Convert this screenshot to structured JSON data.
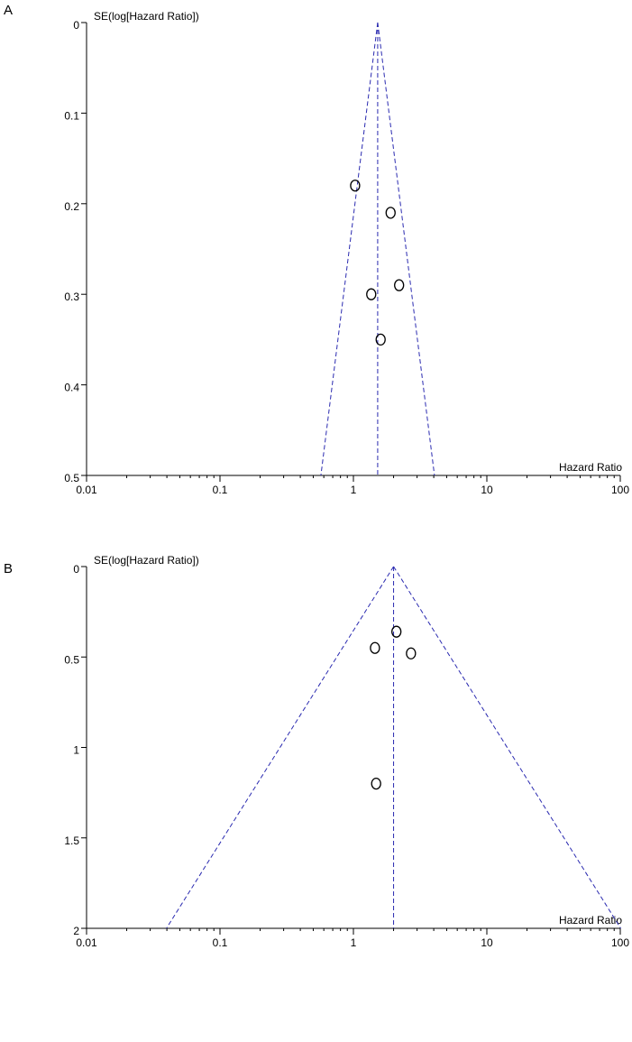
{
  "chart_data": [
    {
      "type": "scatter",
      "panel_label": "A",
      "title": "",
      "xlabel": "Hazard Ratio",
      "ylabel": "SE(log[Hazard Ratio])",
      "x_scale": "log",
      "xlim": [
        0.01,
        100
      ],
      "ylim": [
        0,
        0.5
      ],
      "y_inverted": true,
      "x_ticks": [
        "0.01",
        "0.1",
        "1",
        "10",
        "100"
      ],
      "y_ticks": [
        "0",
        "0.1",
        "0.2",
        "0.3",
        "0.4",
        "0.5"
      ],
      "pooled_estimate": 1.52,
      "grid": false,
      "points": [
        {
          "x": 1.03,
          "y": 0.18
        },
        {
          "x": 1.9,
          "y": 0.21
        },
        {
          "x": 2.2,
          "y": 0.29
        },
        {
          "x": 1.36,
          "y": 0.3
        },
        {
          "x": 1.6,
          "y": 0.35
        }
      ],
      "colors": {
        "reference_lines": "#2a2ab0",
        "points": "#000000",
        "axes": "#000000"
      }
    },
    {
      "type": "scatter",
      "panel_label": "B",
      "title": "",
      "xlabel": "Hazard Ratio",
      "ylabel": "SE(log[Hazard Ratio])",
      "x_scale": "log",
      "xlim": [
        0.01,
        100
      ],
      "ylim": [
        0,
        2
      ],
      "y_inverted": true,
      "x_ticks": [
        "0.01",
        "0.1",
        "1",
        "10",
        "100"
      ],
      "y_ticks": [
        "0",
        "0.5",
        "1",
        "1.5",
        "2"
      ],
      "pooled_estimate": 2.0,
      "grid": false,
      "points": [
        {
          "x": 2.1,
          "y": 0.36
        },
        {
          "x": 1.45,
          "y": 0.45
        },
        {
          "x": 2.7,
          "y": 0.48
        },
        {
          "x": 1.48,
          "y": 1.2
        }
      ],
      "colors": {
        "reference_lines": "#2a2ab0",
        "points": "#000000",
        "axes": "#000000"
      }
    }
  ]
}
